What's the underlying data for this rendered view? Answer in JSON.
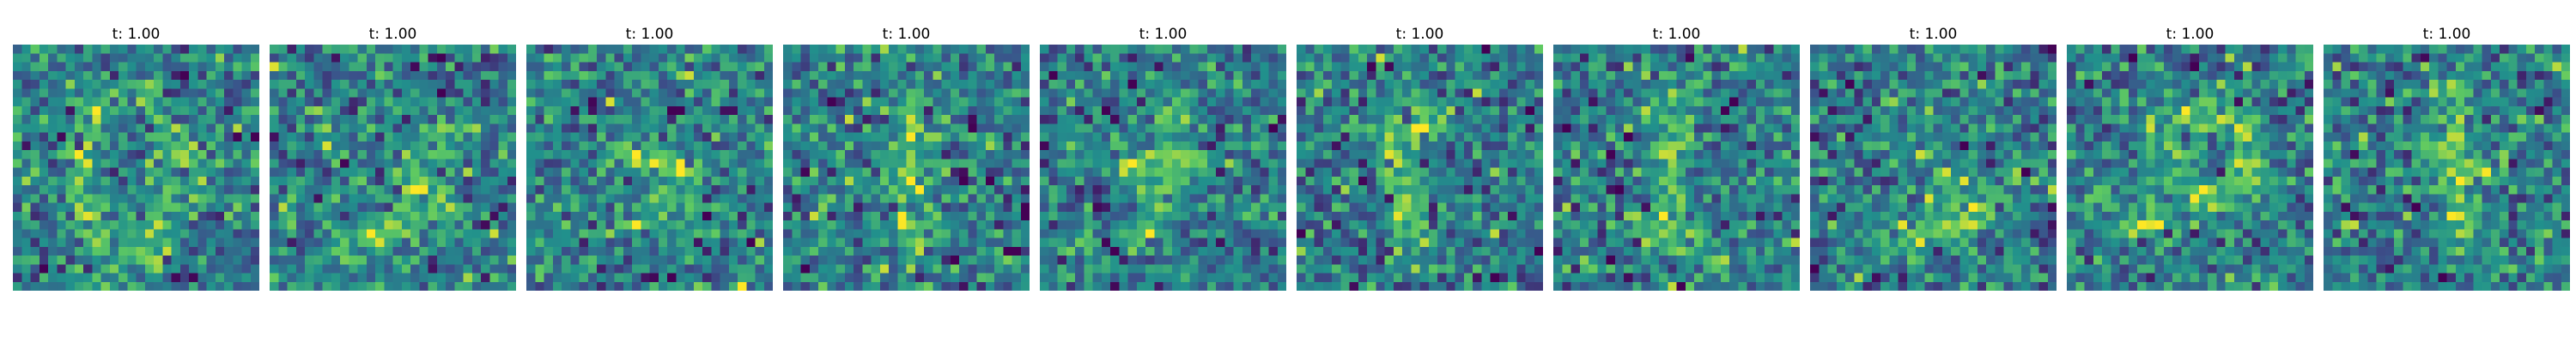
{
  "chart_data": {
    "type": "heatmap",
    "grid": [
      28,
      28
    ],
    "colormap": "viridis",
    "colors": [
      "#440154",
      "#3b528b",
      "#21918c",
      "#5ec962",
      "#fde725"
    ],
    "axes_visible": false,
    "panels": [
      {
        "title": "t: 1.00"
      },
      {
        "title": "t: 1.00"
      },
      {
        "title": "t: 1.00"
      },
      {
        "title": "t: 1.00"
      },
      {
        "title": "t: 1.00"
      },
      {
        "title": "t: 1.00"
      },
      {
        "title": "t: 1.00"
      },
      {
        "title": "t: 1.00"
      },
      {
        "title": "t: 1.00"
      },
      {
        "title": "t: 1.00"
      }
    ]
  }
}
